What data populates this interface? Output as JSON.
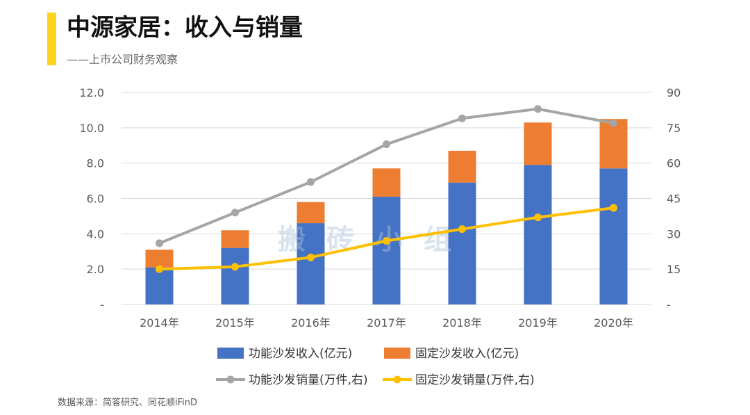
{
  "header": {
    "title": "中源家居：收入与销量",
    "subtitle": "——上市公司财务观察"
  },
  "footer": {
    "source": "数据来源：简答研究、同花顺iFinD"
  },
  "watermark": "搬砖小组",
  "colors": {
    "accent": "#FFD21F",
    "functional_revenue": "#4472C4",
    "fixed_revenue": "#ED7D31",
    "functional_volume": "#A5A5A5",
    "fixed_volume": "#FFC000",
    "gridline": "#D9D9D9"
  },
  "chart_data": {
    "type": "bar",
    "stacked": true,
    "categories": [
      "2014年",
      "2015年",
      "2016年",
      "2017年",
      "2018年",
      "2019年",
      "2020年"
    ],
    "series": [
      {
        "name": "功能沙发收入(亿元)",
        "type": "bar",
        "axis": "left",
        "values": [
          2.1,
          3.2,
          4.6,
          6.1,
          6.9,
          7.9,
          7.7
        ]
      },
      {
        "name": "固定沙发收入(亿元)",
        "type": "bar",
        "axis": "left",
        "values": [
          1.0,
          1.0,
          1.2,
          1.6,
          1.8,
          2.4,
          2.8
        ]
      },
      {
        "name": "功能沙发销量(万件,右)",
        "type": "line",
        "axis": "right",
        "values": [
          26,
          39,
          52,
          68,
          79,
          83,
          77
        ]
      },
      {
        "name": "固定沙发销量(万件,右)",
        "type": "line",
        "axis": "right",
        "values": [
          15,
          16,
          20,
          27,
          32,
          37,
          41
        ]
      }
    ],
    "left_axis": {
      "ylim": [
        0,
        12
      ],
      "ticks": [
        "-",
        "2.0",
        "4.0",
        "6.0",
        "8.0",
        "10.0",
        "12.0"
      ]
    },
    "right_axis": {
      "ylim": [
        0,
        90
      ],
      "ticks": [
        "-",
        "15",
        "30",
        "45",
        "60",
        "75",
        "90"
      ]
    },
    "grid": true,
    "legend_position": "bottom"
  }
}
